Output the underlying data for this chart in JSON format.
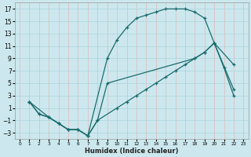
{
  "xlabel": "Humidex (Indice chaleur)",
  "background_color": "#cce8ee",
  "grid_color": "#aad4dc",
  "line_color": "#1a6b6b",
  "xlim": [
    -0.5,
    23.5
  ],
  "ylim": [
    -4,
    18
  ],
  "xticks": [
    0,
    1,
    2,
    3,
    4,
    5,
    6,
    7,
    8,
    9,
    10,
    11,
    12,
    13,
    14,
    15,
    16,
    17,
    18,
    19,
    20,
    21,
    22,
    23
  ],
  "yticks": [
    -3,
    -1,
    1,
    3,
    5,
    7,
    9,
    11,
    13,
    15,
    17
  ],
  "curve1_x": [
    1,
    2,
    3,
    4,
    5,
    6,
    7,
    9,
    10,
    11,
    12,
    13,
    14,
    15,
    16,
    17,
    18,
    19,
    20,
    22
  ],
  "curve1_y": [
    2,
    0,
    -0.5,
    -1.5,
    -2.5,
    -2.5,
    -3.5,
    9,
    12,
    14,
    15.5,
    16,
    16.5,
    17,
    17,
    17,
    16.5,
    15.5,
    11.5,
    4
  ],
  "curve2_x": [
    1,
    2,
    3,
    4,
    5,
    6,
    7,
    8,
    10,
    11,
    12,
    13,
    14,
    15,
    16,
    17,
    18,
    19,
    20,
    22
  ],
  "curve2_y": [
    2,
    0,
    -0.5,
    -1.5,
    -2.5,
    -2.5,
    -3.5,
    -1,
    1,
    2,
    3,
    4,
    5,
    6,
    7,
    8,
    9,
    10,
    11.5,
    8
  ],
  "curve3_x": [
    1,
    3,
    4,
    5,
    6,
    7,
    8,
    9,
    18,
    19,
    20,
    21,
    22
  ],
  "curve3_y": [
    2,
    -0.5,
    -1.5,
    -2.5,
    -2.5,
    -3.5,
    -1,
    5,
    9,
    10,
    11.5,
    7.5,
    3
  ]
}
